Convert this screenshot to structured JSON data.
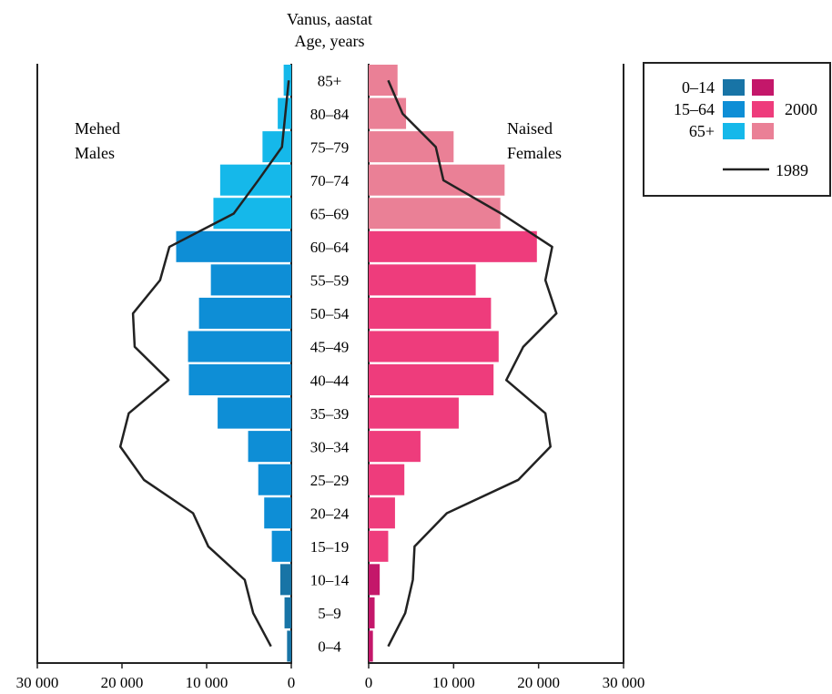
{
  "chart_data": {
    "type": "bar",
    "title_lines": [
      "Vanus, aastat",
      "Age, years"
    ],
    "age_groups": [
      "0–4",
      "5–9",
      "10–14",
      "15–19",
      "20–24",
      "25–29",
      "30–34",
      "35–39",
      "40–44",
      "45–49",
      "50–54",
      "55–59",
      "60–64",
      "65–69",
      "70–74",
      "75–79",
      "80–84",
      "85+"
    ],
    "males_label": [
      "Mehed",
      "Males"
    ],
    "females_label": [
      "Naised",
      "Females"
    ],
    "x_ticks_left": [
      "30 000",
      "20 000",
      "10 000",
      "0"
    ],
    "x_ticks_right": [
      "0",
      "10 000",
      "20 000",
      "30 000"
    ],
    "xlim": [
      0,
      30000
    ],
    "series": [
      {
        "name": "2000",
        "sex": "males",
        "type": "bar",
        "values": [
          500,
          800,
          1300,
          2300,
          3200,
          3900,
          5100,
          8700,
          12100,
          12200,
          10900,
          9500,
          13600,
          9200,
          8400,
          3400,
          1600,
          900
        ]
      },
      {
        "name": "2000",
        "sex": "females",
        "type": "bar",
        "values": [
          500,
          700,
          1300,
          2300,
          3100,
          4200,
          6100,
          10600,
          14700,
          15300,
          14400,
          12600,
          19800,
          15500,
          16000,
          10000,
          4400,
          3400
        ]
      },
      {
        "name": "1989",
        "sex": "males",
        "type": "line",
        "values": [
          2400,
          4500,
          5500,
          9800,
          11600,
          17400,
          20200,
          19200,
          14500,
          18500,
          18700,
          15500,
          14400,
          6800,
          3900,
          1100,
          700,
          300
        ]
      },
      {
        "name": "1989",
        "sex": "females",
        "type": "line",
        "values": [
          2300,
          4300,
          5200,
          5400,
          9200,
          17600,
          21400,
          20800,
          16200,
          18200,
          22100,
          20800,
          21600,
          15600,
          8800,
          7900,
          4000,
          2300
        ]
      }
    ],
    "group_colors": {
      "males": {
        "0–14": "#1874a6",
        "15–64": "#0e8ed6",
        "65+": "#15b8ea"
      },
      "females": {
        "0–14": "#c4176a",
        "15–64": "#ee3c7c",
        "65+": "#ea8096"
      }
    },
    "line_color": "#222222",
    "legend": {
      "position": "top-right",
      "groups": [
        "0–14",
        "15–64",
        "65+"
      ],
      "year_bars": "2000",
      "year_line": "1989"
    }
  }
}
